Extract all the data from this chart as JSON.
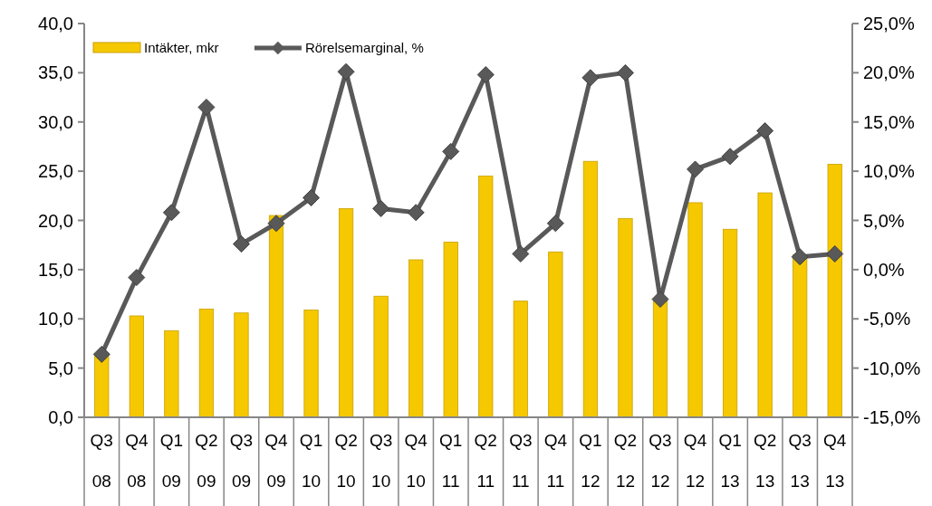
{
  "chart_data": {
    "type": "bar",
    "categories": [
      "Q3 08",
      "Q4 08",
      "Q1 09",
      "Q2 09",
      "Q3 09",
      "Q4 09",
      "Q1 10",
      "Q2 10",
      "Q3 10",
      "Q4 10",
      "Q1 11",
      "Q2 11",
      "Q3 11",
      "Q4 11",
      "Q1 12",
      "Q2 12",
      "Q3 12",
      "Q4 12",
      "Q1 13",
      "Q2 13",
      "Q3 13",
      "Q4 13"
    ],
    "series": [
      {
        "name": "Intäkter, mkr",
        "color": "#f5c800",
        "values": [
          6.5,
          10.3,
          8.8,
          11.0,
          10.6,
          20.5,
          10.9,
          21.2,
          12.3,
          16.0,
          17.8,
          24.5,
          11.8,
          16.8,
          26.0,
          20.2,
          12.0,
          21.8,
          19.1,
          22.8,
          16.5,
          25.7
        ]
      },
      {
        "name": "Rörelsemarginal, %",
        "type": "line",
        "axis": "y2",
        "color": "#595959",
        "marker": "diamond",
        "values": [
          -8.6,
          -0.8,
          5.8,
          16.5,
          2.6,
          4.7,
          7.3,
          20.1,
          6.2,
          5.8,
          12.0,
          19.8,
          1.6,
          4.7,
          19.5,
          20.0,
          -3.0,
          10.2,
          11.5,
          14.1,
          1.3,
          1.6
        ]
      }
    ],
    "ylim": [
      0,
      40
    ],
    "yticks": [
      {
        "value": 0,
        "label": "0,0"
      },
      {
        "value": 5,
        "label": "5,0"
      },
      {
        "value": 10,
        "label": "10,0"
      },
      {
        "value": 15,
        "label": "15,0"
      },
      {
        "value": 20,
        "label": "20,0"
      },
      {
        "value": 25,
        "label": "25,0"
      },
      {
        "value": 30,
        "label": "30,0"
      },
      {
        "value": 35,
        "label": "35,0"
      },
      {
        "value": 40,
        "label": "40,0"
      }
    ],
    "y2lim": [
      -15,
      25
    ],
    "y2ticks": [
      {
        "value": -15,
        "label": "-15,0%"
      },
      {
        "value": -10,
        "label": "-10,0%"
      },
      {
        "value": -5,
        "label": "-5,0%"
      },
      {
        "value": 0,
        "label": "0,0%"
      },
      {
        "value": 5,
        "label": "5,0%"
      },
      {
        "value": 10,
        "label": "10,0%"
      },
      {
        "value": 15,
        "label": "15,0%"
      },
      {
        "value": 20,
        "label": "20,0%"
      },
      {
        "value": 25,
        "label": "25,0%"
      }
    ],
    "legend": "top left",
    "grid": false
  }
}
